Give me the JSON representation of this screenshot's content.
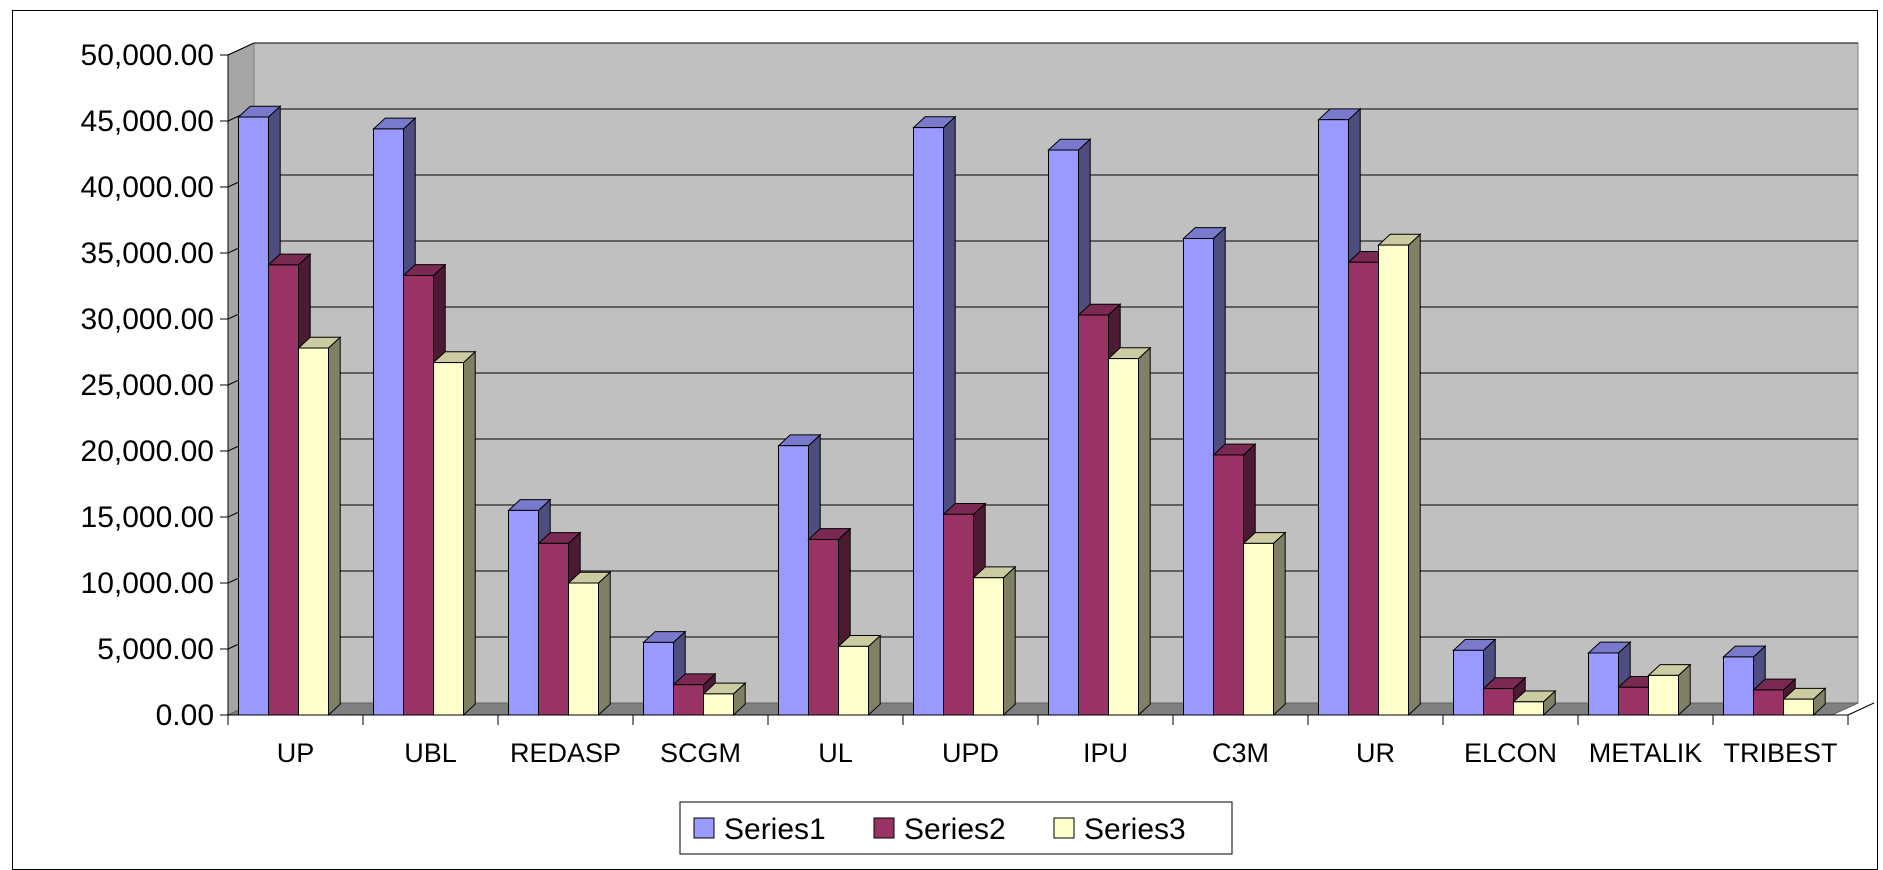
{
  "chart_data": {
    "type": "bar",
    "categories": [
      "UP",
      "UBL",
      "REDASP",
      "SCGM",
      "UL",
      "UPD",
      "IPU",
      "C3M",
      "UR",
      "ELCON",
      "METALIK",
      "TRIBEST"
    ],
    "series": [
      {
        "name": "Series1",
        "color": "#9999ff",
        "values": [
          45300,
          44400,
          15500,
          5500,
          20400,
          44500,
          42800,
          36100,
          45100,
          4900,
          4700,
          4400
        ]
      },
      {
        "name": "Series2",
        "color": "#993366",
        "values": [
          34100,
          33300,
          13000,
          2300,
          13300,
          15200,
          30300,
          19700,
          34300,
          2000,
          2100,
          1900
        ]
      },
      {
        "name": "Series3",
        "color": "#ffffcc",
        "values": [
          27800,
          26700,
          10000,
          1600,
          5200,
          10400,
          27000,
          13000,
          35600,
          1000,
          3000,
          1200
        ]
      }
    ],
    "ylim": [
      0,
      50000
    ],
    "yticks": [
      "0.00",
      "5,000.00",
      "10,000.00",
      "15,000.00",
      "20,000.00",
      "25,000.00",
      "30,000.00",
      "35,000.00",
      "40,000.00",
      "45,000.00",
      "50,000.00"
    ],
    "grid": true,
    "legend_position": "bottom"
  }
}
